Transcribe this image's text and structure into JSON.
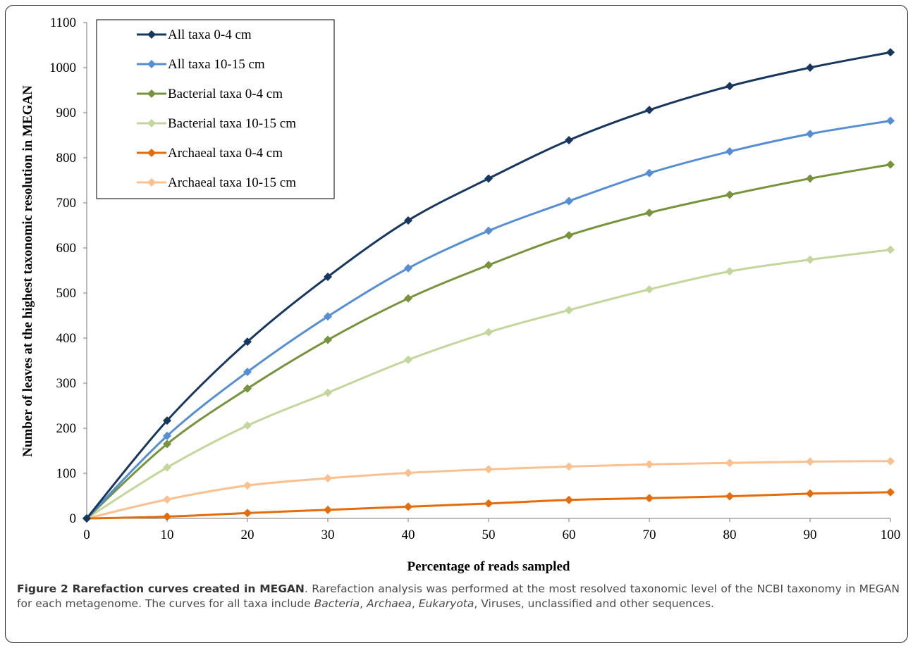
{
  "chart_data": {
    "type": "line",
    "title": "",
    "xlabel": "Percentage of reads sampled",
    "ylabel": "Number of leaves at the highest taxonomic resolution in MEGAN",
    "x": [
      0,
      10,
      20,
      30,
      40,
      50,
      60,
      70,
      80,
      90,
      100
    ],
    "xlim": [
      0,
      100
    ],
    "ylim": [
      0,
      1100
    ],
    "xticks": [
      "0",
      "10",
      "20",
      "30",
      "40",
      "50",
      "60",
      "70",
      "80",
      "90",
      "100"
    ],
    "yticks": [
      "0",
      "100",
      "200",
      "300",
      "400",
      "500",
      "600",
      "700",
      "800",
      "900",
      "1000",
      "1100"
    ],
    "grid": false,
    "legend_position": "top-left",
    "marker": "diamond",
    "series": [
      {
        "name": "All taxa 0-4 cm",
        "color": "#17375e",
        "values": [
          0,
          217,
          392,
          536,
          661,
          754,
          839,
          906,
          959,
          1000,
          1034
        ]
      },
      {
        "name": "All taxa 10-15 cm",
        "color": "#558ed5",
        "values": [
          0,
          183,
          325,
          448,
          555,
          638,
          704,
          766,
          814,
          853,
          882
        ]
      },
      {
        "name": "Bacterial taxa 0-4 cm",
        "color": "#77933c",
        "values": [
          0,
          165,
          288,
          396,
          488,
          562,
          628,
          678,
          718,
          754,
          785
        ]
      },
      {
        "name": "Bacterial taxa 10-15 cm",
        "color": "#c3d69b",
        "values": [
          0,
          113,
          206,
          279,
          352,
          413,
          462,
          508,
          548,
          574,
          596
        ]
      },
      {
        "name": "Archaeal taxa 0-4 cm",
        "color": "#e46c0a",
        "values": [
          0,
          4,
          12,
          19,
          26,
          33,
          41,
          45,
          49,
          55,
          58
        ]
      },
      {
        "name": "Archaeal taxa 10-15 cm",
        "color": "#fac090",
        "values": [
          0,
          42,
          73,
          89,
          101,
          109,
          115,
          120,
          123,
          126,
          127
        ]
      }
    ]
  },
  "caption": {
    "title": "Figure 2 Rarefaction curves created in MEGAN",
    "text_1": ". Rarefaction analysis was performed at the most resolved taxonomic level of the NCBI taxonomy in MEGAN for each metagenome. The curves for all taxa include ",
    "bacteria": "Bacteria",
    "sep_1": ", ",
    "archaea": "Archaea",
    "sep_2": ", ",
    "eukaryota": "Eukaryota",
    "text_2": ", Viruses, unclassified and other sequences."
  }
}
